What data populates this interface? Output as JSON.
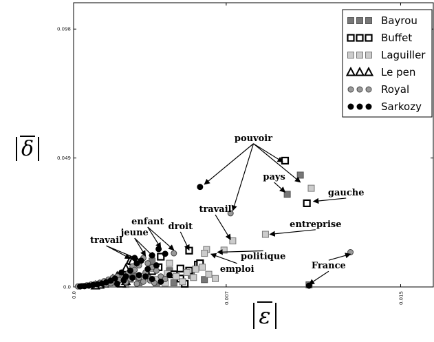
{
  "chart_data": {
    "type": "scatter",
    "xlabel": "ε",
    "ylabel": "δ",
    "xlim": [
      0,
      0.0165
    ],
    "ylim": [
      0,
      0.108
    ],
    "x_ticks": [
      {
        "value": 0.0,
        "label": "0.0"
      },
      {
        "value": 0.007,
        "label": "0.007"
      },
      {
        "value": 0.015,
        "label": "0.015"
      }
    ],
    "y_ticks": [
      {
        "value": 0.0,
        "label": "0.0"
      },
      {
        "value": 0.049,
        "label": "0.049"
      },
      {
        "value": 0.098,
        "label": "0.098"
      }
    ],
    "legend_position": "top-right",
    "series": [
      {
        "name": "Bayrou",
        "marker": "square",
        "fill": "#777777",
        "stroke": "#555555",
        "points": [
          [
            0.0104,
            0.0425
          ],
          [
            0.0098,
            0.0352
          ],
          [
            0.0108,
            0.0008
          ],
          [
            0.0036,
            0.0098
          ],
          [
            0.0044,
            0.0062
          ],
          [
            0.0054,
            0.0044
          ],
          [
            0.006,
            0.0028
          ],
          [
            0.0048,
            0.003
          ],
          [
            0.004,
            0.0022
          ],
          [
            0.003,
            0.0016
          ],
          [
            0.0024,
            0.001
          ],
          [
            0.0026,
            0.003
          ],
          [
            0.0034,
            0.0052
          ],
          [
            0.0028,
            0.004
          ],
          [
            0.0038,
            0.0012
          ],
          [
            0.0046,
            0.0016
          ]
        ]
      },
      {
        "name": "Buffet",
        "marker": "square-open",
        "fill": "#ffffff",
        "stroke": "#000000",
        "points": [
          [
            0.0097,
            0.048
          ],
          [
            0.0107,
            0.0318
          ],
          [
            0.0053,
            0.0138
          ],
          [
            0.004,
            0.0115
          ],
          [
            0.0057,
            0.0085
          ],
          [
            0.0049,
            0.007
          ],
          [
            0.0039,
            0.0075
          ],
          [
            0.0036,
            0.006
          ],
          [
            0.0046,
            0.0048
          ],
          [
            0.0051,
            0.0012
          ],
          [
            0.0049,
            0.0032
          ],
          [
            0.0053,
            0.0062
          ],
          [
            0.0058,
            0.009
          ]
        ]
      },
      {
        "name": "Laguiller",
        "marker": "square",
        "fill": "#cccccc",
        "stroke": "#777777",
        "points": [
          [
            0.0109,
            0.0375
          ],
          [
            0.0073,
            0.0175
          ],
          [
            0.0088,
            0.02
          ],
          [
            0.0069,
            0.014
          ],
          [
            0.0061,
            0.0142
          ],
          [
            0.0059,
            0.0075
          ],
          [
            0.0056,
            0.0068
          ],
          [
            0.0062,
            0.0048
          ],
          [
            0.0065,
            0.0032
          ],
          [
            0.0052,
            0.0055
          ],
          [
            0.0043,
            0.005
          ],
          [
            0.0038,
            0.0028
          ],
          [
            0.0047,
            0.004
          ],
          [
            0.006,
            0.0128
          ],
          [
            0.0044,
            0.009
          ],
          [
            0.005,
            0.002
          ],
          [
            0.0055,
            0.0036
          ],
          [
            0.0042,
            0.0015
          ],
          [
            0.0032,
            0.004
          ],
          [
            0.0036,
            0.007
          ]
        ]
      },
      {
        "name": "Le pen",
        "marker": "triangle-open",
        "fill": "#ffffff",
        "stroke": "#000000",
        "points": [
          [
            0.0026,
            0.01
          ],
          [
            0.0027,
            0.0098
          ],
          [
            0.0024,
            0.007
          ],
          [
            0.002,
            0.004
          ],
          [
            0.0021,
            0.0042
          ],
          [
            0.0018,
            0.003
          ],
          [
            0.0016,
            0.0018
          ],
          [
            0.0014,
            0.0012
          ],
          [
            0.0012,
            0.0008
          ],
          [
            0.001,
            0.0005
          ],
          [
            0.0022,
            0.0012
          ],
          [
            0.0024,
            0.0022
          ]
        ]
      },
      {
        "name": "Royal",
        "marker": "circle",
        "fill": "#999999",
        "stroke": "#444444",
        "points": [
          [
            0.0072,
            0.028
          ],
          [
            0.0127,
            0.0132
          ],
          [
            0.0046,
            0.0128
          ],
          [
            0.0032,
            0.011
          ],
          [
            0.0034,
            0.009
          ],
          [
            0.003,
            0.0082
          ],
          [
            0.0027,
            0.0078
          ],
          [
            0.0038,
            0.0062
          ],
          [
            0.0036,
            0.0075
          ],
          [
            0.0033,
            0.0055
          ],
          [
            0.0028,
            0.0065
          ],
          [
            0.0025,
            0.0052
          ],
          [
            0.0022,
            0.0048
          ],
          [
            0.002,
            0.004
          ],
          [
            0.0018,
            0.0035
          ],
          [
            0.0016,
            0.0028
          ],
          [
            0.0014,
            0.0022
          ],
          [
            0.0012,
            0.0016
          ],
          [
            0.001,
            0.0012
          ],
          [
            0.0008,
            0.0009
          ],
          [
            0.0006,
            0.0006
          ],
          [
            0.0004,
            0.0004
          ],
          [
            0.0002,
            0.0002
          ],
          [
            0.003,
            0.0035
          ],
          [
            0.0035,
            0.0025
          ],
          [
            0.004,
            0.004
          ],
          [
            0.0026,
            0.003
          ],
          [
            0.0024,
            0.0018
          ],
          [
            0.0019,
            0.0016
          ],
          [
            0.0015,
            0.001
          ],
          [
            0.0029,
            0.0012
          ],
          [
            0.0032,
            0.002
          ],
          [
            0.0037,
            0.0016
          ],
          [
            0.0042,
            0.003
          ],
          [
            0.0021,
            0.0026
          ],
          [
            0.0017,
            0.0014
          ]
        ]
      },
      {
        "name": "Sarkozy",
        "marker": "circle",
        "fill": "#000000",
        "stroke": "#000000",
        "points": [
          [
            0.0058,
            0.038
          ],
          [
            0.0039,
            0.0144
          ],
          [
            0.0042,
            0.0126
          ],
          [
            0.0036,
            0.012
          ],
          [
            0.0028,
            0.011
          ],
          [
            0.0031,
            0.01
          ],
          [
            0.0029,
            0.009
          ],
          [
            0.0038,
            0.0082
          ],
          [
            0.0034,
            0.0068
          ],
          [
            0.0026,
            0.0062
          ],
          [
            0.0022,
            0.0055
          ],
          [
            0.003,
            0.0045
          ],
          [
            0.0024,
            0.004
          ],
          [
            0.0019,
            0.0032
          ],
          [
            0.0017,
            0.0024
          ],
          [
            0.0015,
            0.0018
          ],
          [
            0.0013,
            0.0013
          ],
          [
            0.0011,
            0.001
          ],
          [
            0.0009,
            0.0008
          ],
          [
            0.0007,
            0.0005
          ],
          [
            0.0005,
            0.0003
          ],
          [
            0.0003,
            0.0002
          ],
          [
            0.0108,
            0.0005
          ],
          [
            0.0033,
            0.004
          ],
          [
            0.0027,
            0.0035
          ],
          [
            0.0036,
            0.003
          ],
          [
            0.0023,
            0.0025
          ],
          [
            0.004,
            0.002
          ],
          [
            0.0044,
            0.0045
          ],
          [
            0.002,
            0.0012
          ]
        ]
      }
    ],
    "annotations": [
      {
        "text": "pouvoir",
        "x": 0.00825,
        "y": 0.0555,
        "targets": [
          [
            0.006,
            0.039
          ],
          [
            0.0073,
            0.029
          ],
          [
            0.0096,
            0.0475
          ],
          [
            0.0104,
            0.0398
          ]
        ]
      },
      {
        "text": "pays",
        "x": 0.0092,
        "y": 0.0408,
        "targets": [
          [
            0.0097,
            0.036
          ]
        ]
      },
      {
        "text": "gauche",
        "x": 0.0125,
        "y": 0.0348,
        "targets": [
          [
            0.011,
            0.0325
          ]
        ]
      },
      {
        "text": "entreprise",
        "x": 0.0111,
        "y": 0.0228,
        "targets": [
          [
            0.009,
            0.02
          ]
        ]
      },
      {
        "text": "travail",
        "x": 0.0065,
        "y": 0.0285,
        "targets": [
          [
            0.0072,
            0.018
          ]
        ]
      },
      {
        "text": "politique",
        "x": 0.0087,
        "y": 0.0106,
        "targets": [
          [
            0.0066,
            0.0132
          ]
        ]
      },
      {
        "text": "emploi",
        "x": 0.0075,
        "y": 0.0058,
        "targets": [
          [
            0.0063,
            0.0125
          ]
        ]
      },
      {
        "text": "France",
        "x": 0.0117,
        "y": 0.007,
        "targets": [
          [
            0.0127,
            0.0125
          ],
          [
            0.0108,
            0.001
          ]
        ]
      },
      {
        "text": "droit",
        "x": 0.0049,
        "y": 0.022,
        "targets": [
          [
            0.0053,
            0.014
          ]
        ]
      },
      {
        "text": "enfant",
        "x": 0.0034,
        "y": 0.0238,
        "targets": [
          [
            0.004,
            0.0148
          ],
          [
            0.0046,
            0.014
          ]
        ]
      },
      {
        "text": "jeune",
        "x": 0.0028,
        "y": 0.0196,
        "targets": [
          [
            0.0033,
            0.0118
          ],
          [
            0.0037,
            0.0112
          ]
        ]
      },
      {
        "text": "travail",
        "x": 0.0015,
        "y": 0.0167,
        "targets": [
          [
            0.0026,
            0.0108
          ],
          [
            0.003,
            0.0104
          ]
        ]
      }
    ]
  }
}
